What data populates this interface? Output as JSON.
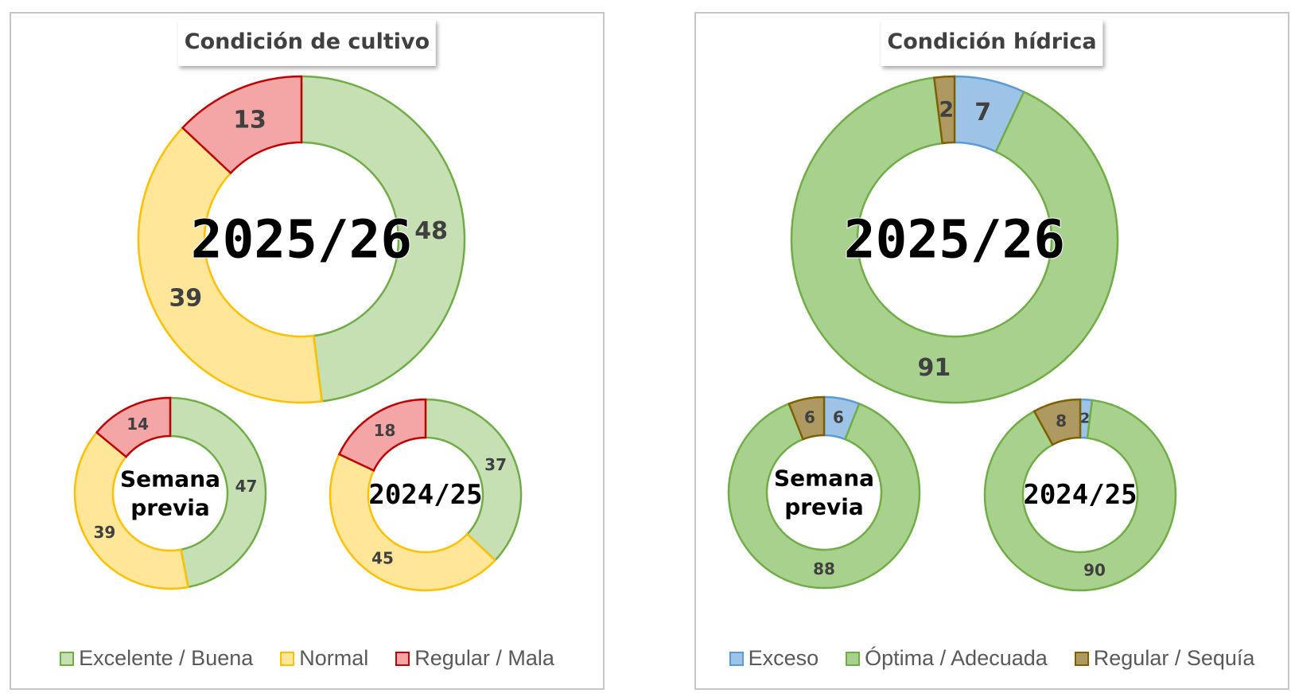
{
  "colors": {
    "excelente_fill": "#c6e0b4",
    "excelente_stroke": "#70ad47",
    "normal_fill": "#ffe699",
    "normal_stroke": "#ffc000",
    "regular_mala_fill": "#f4a6a6",
    "regular_mala_stroke": "#c00000",
    "exceso_fill": "#9dc3e6",
    "exceso_stroke": "#5b9bd5",
    "optima_fill": "#a9d18e",
    "optima_stroke": "#70ad47",
    "sequia_fill": "#ae9a60",
    "sequia_stroke": "#7f6000"
  },
  "chart_data": [
    {
      "type": "donut",
      "title": "Condición de cultivo",
      "legend": [
        "Excelente / Buena",
        "Normal",
        "Regular / Mala"
      ],
      "rings": [
        {
          "label": "2025/26",
          "values": [
            48,
            39,
            13
          ]
        },
        {
          "label": "Semana previa",
          "label_lines": [
            "Semana",
            "previa"
          ],
          "values": [
            47,
            39,
            14
          ]
        },
        {
          "label": "2024/25",
          "values": [
            37,
            45,
            18
          ]
        }
      ]
    },
    {
      "type": "donut",
      "title": "Condición hídrica",
      "legend": [
        "Exceso",
        "Óptima / Adecuada",
        "Regular / Sequía"
      ],
      "rings": [
        {
          "label": "2025/26",
          "values": [
            7,
            91,
            2
          ]
        },
        {
          "label": "Semana previa",
          "label_lines": [
            "Semana",
            "previa"
          ],
          "values": [
            6,
            88,
            6
          ]
        },
        {
          "label": "2024/25",
          "values": [
            2,
            90,
            8
          ]
        }
      ]
    }
  ]
}
